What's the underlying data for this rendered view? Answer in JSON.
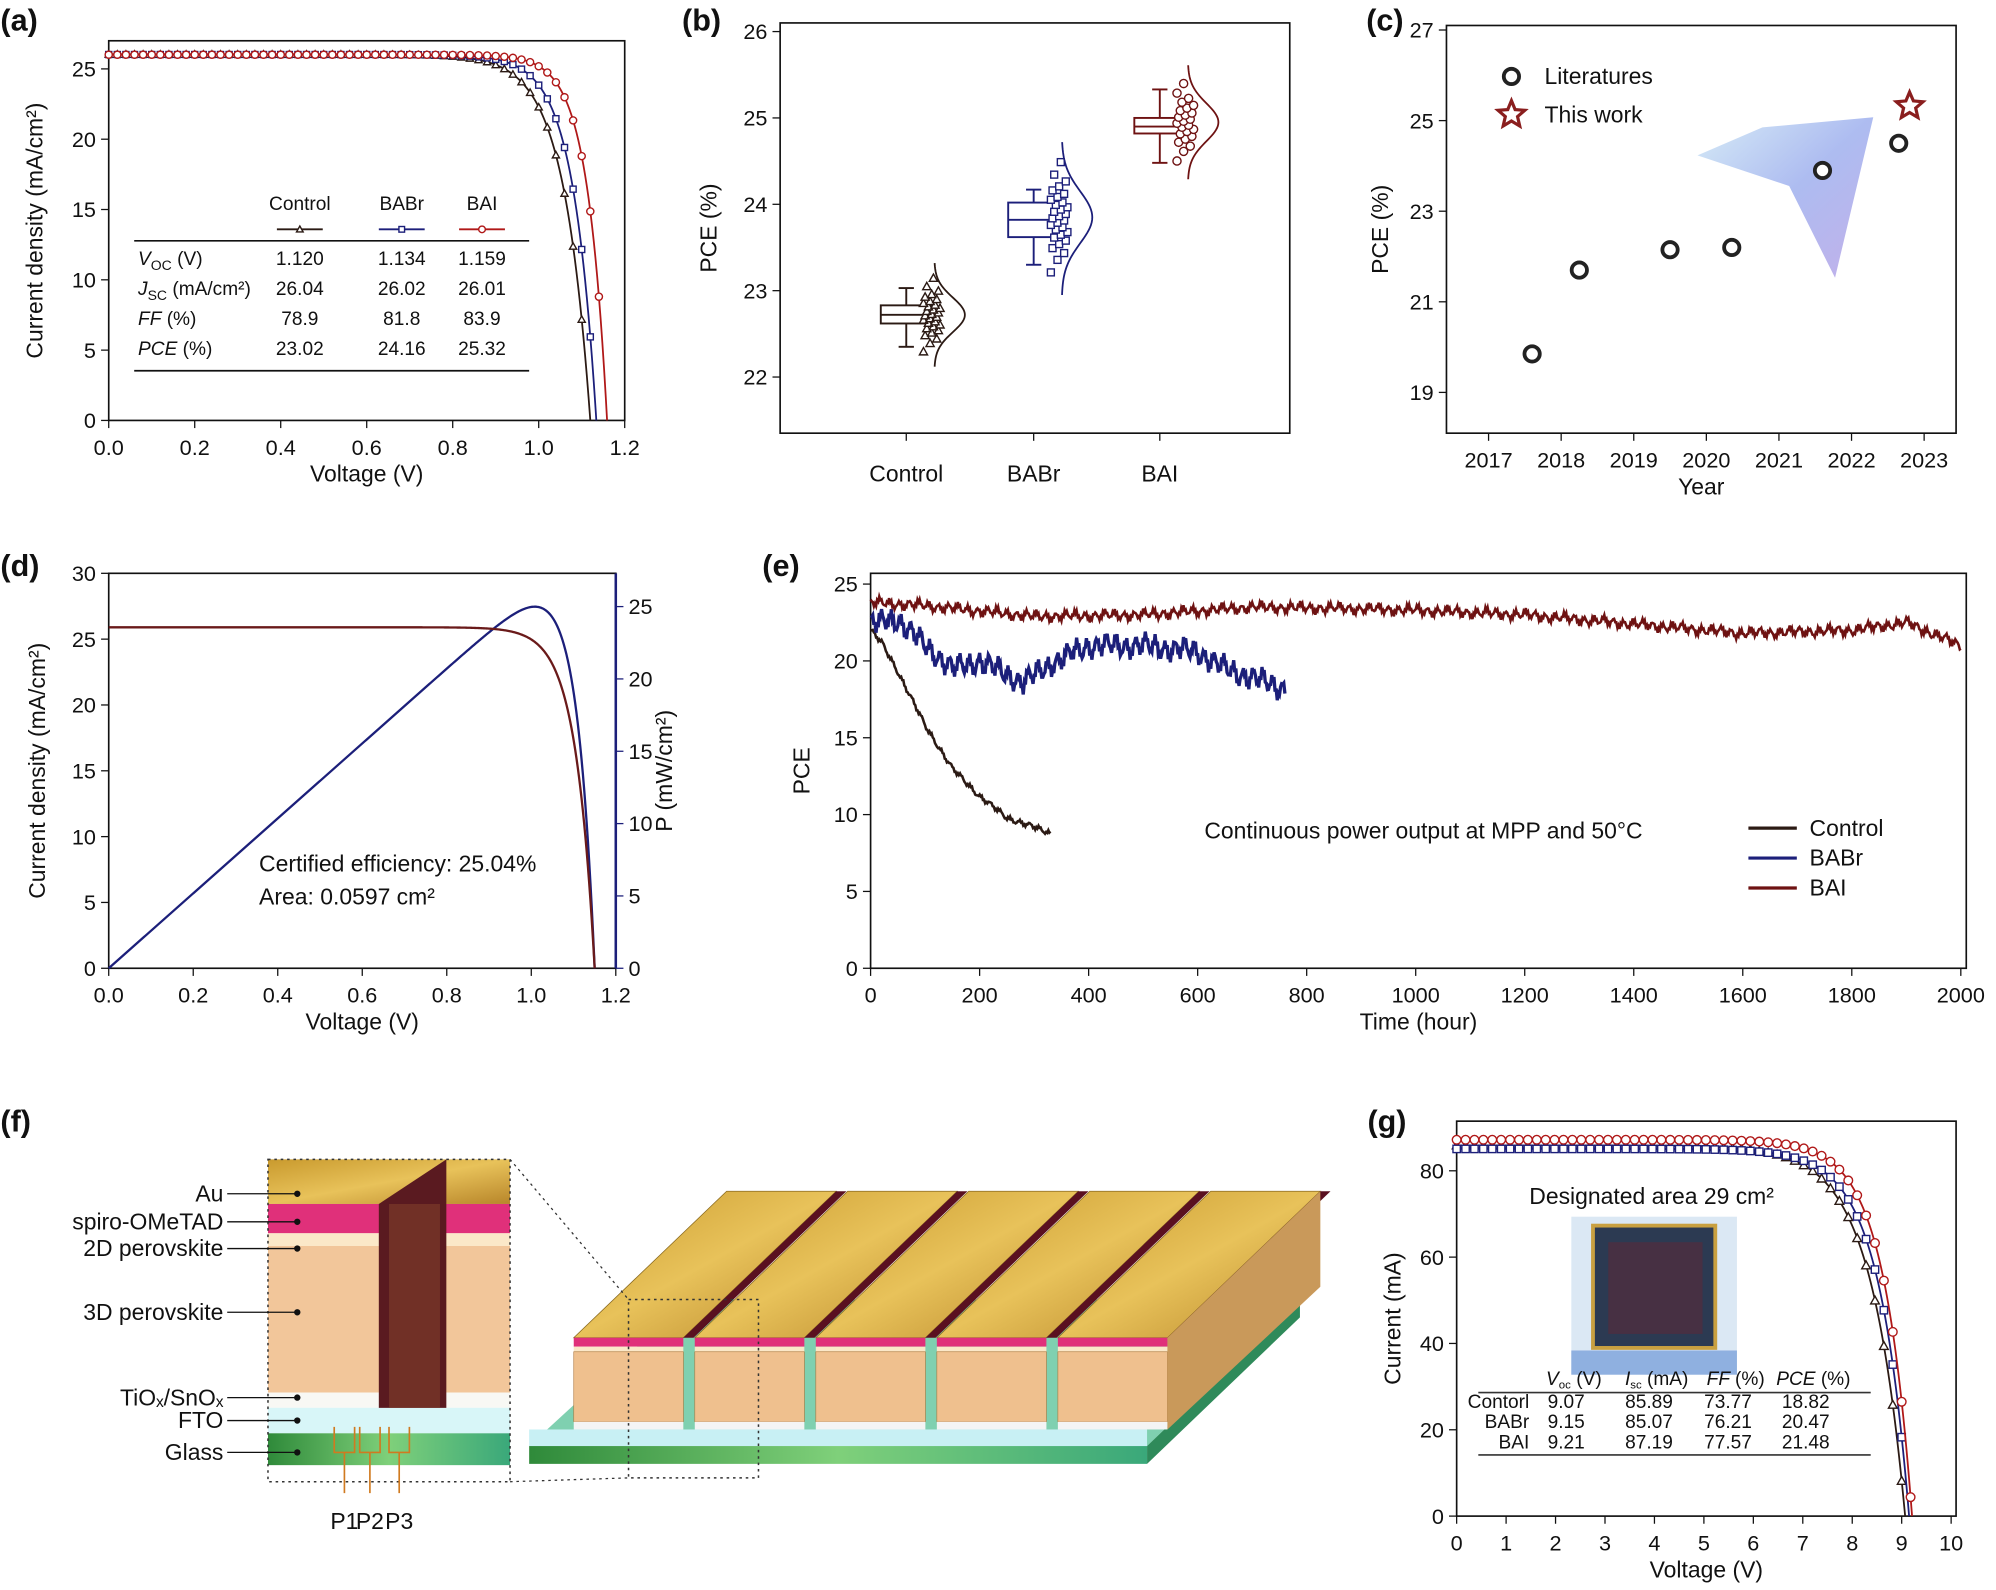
{
  "panel_labels": [
    "(a)",
    "(b)",
    "(c)",
    "(d)",
    "(e)",
    "(f)",
    "(g)"
  ],
  "colors": {
    "control": "#2b1a14",
    "babr": "#1c1f7a",
    "bai": "#b01818",
    "bai_dark": "#6e1212",
    "axis": "#111111"
  },
  "panel_a_table": {
    "headers": [
      "Control",
      "BABr",
      "BAI"
    ],
    "rows": [
      {
        "sym": "V",
        "sub": "OC",
        "unit": " (V)",
        "values": [
          "1.120",
          "1.134",
          "1.159"
        ]
      },
      {
        "sym": "J",
        "sub": "SC",
        "unit": " (mA/cm²)",
        "values": [
          "26.04",
          "26.02",
          "26.01"
        ]
      },
      {
        "sym": "FF",
        "sub": "",
        "unit": " (%)",
        "values": [
          "78.9",
          "81.8",
          "83.9"
        ]
      },
      {
        "sym": "PCE",
        "sub": "",
        "unit": " (%)",
        "values": [
          "23.02",
          "24.16",
          "25.32"
        ]
      }
    ]
  },
  "panel_d_text": {
    "certified": "Certified efficiency: 25.04%",
    "area": "Area: 0.0597 cm²"
  },
  "panel_e_text": {
    "annotation": "Continuous power output at MPP and 50°C"
  },
  "panel_f_labels": {
    "layers": [
      "Au",
      "spiro-OMeTAD",
      "2D perovskite",
      "3D perovskite",
      "TiOₓ/SnOₓ",
      "FTO",
      "Glass"
    ],
    "scribes": [
      "P1",
      "P2",
      "P3"
    ]
  },
  "panel_g_text": {
    "area": "Designated area 29 cm²",
    "table_headers": [
      "V_oc (V)",
      "I_sc (mA)",
      "FF (%)",
      "PCE (%)"
    ],
    "table_rows": [
      {
        "name": "Contorl",
        "values": [
          "9.07",
          "85.89",
          "73.77",
          "18.82"
        ]
      },
      {
        "name": "BABr",
        "values": [
          "9.15",
          "85.07",
          "76.21",
          "20.47"
        ]
      },
      {
        "name": "BAI",
        "values": [
          "9.21",
          "87.19",
          "77.57",
          "21.48"
        ]
      }
    ]
  },
  "chart_data": [
    {
      "id": "a",
      "type": "line",
      "xlabel": "Voltage (V)",
      "ylabel": "Current density (mA/cm²)",
      "xlim": [
        0,
        1.2
      ],
      "ylim": [
        0,
        27
      ],
      "xticks": [
        0,
        0.2,
        0.4,
        0.6,
        0.8,
        1.0,
        1.2
      ],
      "xtick_labels": [
        "0.0",
        "0.2",
        "0.4",
        "0.6",
        "0.8",
        "1.0",
        "1.2"
      ],
      "yticks": [
        0,
        5,
        10,
        15,
        20,
        25
      ],
      "ytick_labels": [
        "0",
        "5",
        "10",
        "15",
        "20",
        "25"
      ],
      "series": [
        {
          "name": "Control",
          "key": "control",
          "marker": "triangle",
          "voc": 1.12,
          "jsc": 26.04,
          "ff": 78.9,
          "pce": 23.02,
          "vt": 0.062
        },
        {
          "name": "BABr",
          "key": "babr",
          "marker": "square",
          "voc": 1.134,
          "jsc": 26.02,
          "ff": 81.8,
          "pce": 24.16,
          "vt": 0.054
        },
        {
          "name": "BAI",
          "key": "bai",
          "marker": "circle",
          "voc": 1.159,
          "jsc": 26.01,
          "ff": 83.9,
          "pce": 25.32,
          "vt": 0.046
        }
      ]
    },
    {
      "id": "b",
      "type": "box",
      "xlabel": "",
      "ylabel": "PCE (%)",
      "ylim": [
        21.35,
        26.1
      ],
      "yticks": [
        22,
        23,
        24,
        25,
        26
      ],
      "ytick_labels": [
        "22",
        "23",
        "24",
        "25",
        "26"
      ],
      "categories": [
        "Control",
        "BABr",
        "BAI"
      ],
      "series": [
        {
          "name": "Control",
          "key": "control",
          "marker": "triangle",
          "min": 22.35,
          "q1": 22.62,
          "median": 22.72,
          "q3": 22.83,
          "max": 23.03,
          "mean": 22.72,
          "sd": 0.2,
          "n": 30
        },
        {
          "name": "BABr",
          "key": "babr",
          "marker": "square",
          "min": 23.3,
          "q1": 23.62,
          "median": 23.82,
          "q3": 24.02,
          "max": 24.17,
          "mean": 23.85,
          "sd": 0.3,
          "n": 30
        },
        {
          "name": "BAI",
          "key": "bai_dark",
          "marker": "circle",
          "min": 24.48,
          "q1": 24.82,
          "median": 24.9,
          "q3": 25.0,
          "max": 25.33,
          "mean": 24.95,
          "sd": 0.22,
          "n": 24
        }
      ]
    },
    {
      "id": "c",
      "type": "scatter",
      "xlabel": "Year",
      "ylabel": "PCE (%)",
      "xlim": [
        2016.42,
        2023.44
      ],
      "ylim": [
        18.1,
        27.1
      ],
      "xticks": [
        2017,
        2018,
        2019,
        2020,
        2021,
        2022,
        2023
      ],
      "xtick_labels": [
        "2017",
        "2018",
        "2019",
        "2020",
        "2021",
        "2022",
        "2023"
      ],
      "yticks": [
        19,
        21,
        23,
        25,
        27
      ],
      "ytick_labels": [
        "19",
        "21",
        "23",
        "25",
        "27"
      ],
      "legend": [
        "Literatures",
        "This work"
      ],
      "legend_position": "top-left",
      "series": [
        {
          "name": "Literatures",
          "marker": "circle",
          "x": [
            2017.6,
            2018.25,
            2019.5,
            2020.35,
            2021.6,
            2022.65
          ],
          "y": [
            19.85,
            21.7,
            22.15,
            22.2,
            23.9,
            24.5
          ]
        },
        {
          "name": "This work",
          "marker": "star",
          "x": [
            2022.8
          ],
          "y": [
            25.32
          ]
        }
      ]
    },
    {
      "id": "d",
      "type": "line",
      "xlabel": "Voltage (V)",
      "ylabel": "Current density (mA/cm²)",
      "y2label": "P (mW/cm²)",
      "xlim": [
        0,
        1.2
      ],
      "ylim": [
        0,
        30
      ],
      "y2lim": [
        0,
        27.3
      ],
      "xticks": [
        0,
        0.2,
        0.4,
        0.6,
        0.8,
        1.0,
        1.2
      ],
      "xtick_labels": [
        "0.0",
        "0.2",
        "0.4",
        "0.6",
        "0.8",
        "1.0",
        "1.2"
      ],
      "yticks": [
        0,
        5,
        10,
        15,
        20,
        25,
        30
      ],
      "ytick_labels": [
        "0",
        "5",
        "10",
        "15",
        "20",
        "25",
        "30"
      ],
      "y2ticks": [
        0,
        5,
        10,
        15,
        20,
        25
      ],
      "y2tick_labels": [
        "0",
        "5",
        "10",
        "15",
        "20",
        "25"
      ],
      "series": [
        {
          "name": "Current density",
          "axis": "left",
          "voc": 1.15,
          "jsc": 25.9,
          "vt": 0.045
        },
        {
          "name": "Power",
          "axis": "right",
          "max_power": 25.04
        }
      ]
    },
    {
      "id": "e",
      "type": "line",
      "xlabel": "Time (hour)",
      "ylabel": "PCE",
      "xlim": [
        0,
        2010
      ],
      "ylim": [
        0,
        25.7
      ],
      "xticks": [
        0,
        200,
        400,
        600,
        800,
        1000,
        1200,
        1400,
        1600,
        1800,
        2000
      ],
      "xtick_labels": [
        "0",
        "200",
        "400",
        "600",
        "800",
        "1000",
        "1200",
        "1400",
        "1600",
        "1800",
        "2000"
      ],
      "yticks": [
        0,
        5,
        10,
        15,
        20,
        25
      ],
      "ytick_labels": [
        "0",
        "5",
        "10",
        "15",
        "20",
        "25"
      ],
      "legend": [
        "Control",
        "BABr",
        "BAI"
      ],
      "legend_position": "bottom-right",
      "series": [
        {
          "name": "Control",
          "key": "control",
          "noise": 0.25,
          "points": [
            [
              0,
              22
            ],
            [
              20,
              21.2
            ],
            [
              50,
              19.3
            ],
            [
              100,
              15.8
            ],
            [
              150,
              13
            ],
            [
              200,
              11.2
            ],
            [
              250,
              9.8
            ],
            [
              330,
              8.8
            ]
          ]
        },
        {
          "name": "BABr",
          "key": "babr",
          "noise": 1.0,
          "points": [
            [
              0,
              22.4
            ],
            [
              50,
              22.7
            ],
            [
              100,
              21
            ],
            [
              150,
              19.5
            ],
            [
              200,
              20
            ],
            [
              280,
              18.6
            ],
            [
              330,
              19.8
            ],
            [
              400,
              21
            ],
            [
              500,
              21
            ],
            [
              600,
              20.6
            ],
            [
              650,
              19.5
            ],
            [
              760,
              18.2
            ]
          ]
        },
        {
          "name": "BAI",
          "key": "bai_dark",
          "noise": 0.45,
          "points": [
            [
              0,
              23.8
            ],
            [
              100,
              23.6
            ],
            [
              300,
              22.9
            ],
            [
              500,
              23.0
            ],
            [
              700,
              23.5
            ],
            [
              900,
              23.4
            ],
            [
              1000,
              23.3
            ],
            [
              1200,
              23.0
            ],
            [
              1400,
              22.4
            ],
            [
              1600,
              21.8
            ],
            [
              1800,
              22.0
            ],
            [
              1900,
              22.5
            ],
            [
              2000,
              21.0
            ]
          ]
        }
      ]
    },
    {
      "id": "g",
      "type": "line",
      "xlabel": "Voltage (V)",
      "ylabel": "Current (mA)",
      "xlim": [
        0,
        10.1
      ],
      "ylim": [
        0,
        91.5
      ],
      "xticks": [
        0,
        1,
        2,
        3,
        4,
        5,
        6,
        7,
        8,
        9,
        10
      ],
      "xtick_labels": [
        "0",
        "1",
        "2",
        "3",
        "4",
        "5",
        "6",
        "7",
        "8",
        "9",
        "10"
      ],
      "yticks": [
        0,
        20,
        40,
        60,
        80
      ],
      "ytick_labels": [
        "0",
        "20",
        "40",
        "60",
        "80"
      ],
      "series": [
        {
          "name": "Contorl",
          "key": "control",
          "marker": "triangle",
          "voc": 9.07,
          "jsc": 85.89,
          "ff": 73.77,
          "pce": 18.82,
          "vt": 0.7
        },
        {
          "name": "BABr",
          "key": "babr",
          "marker": "square",
          "voc": 9.15,
          "jsc": 85.07,
          "ff": 76.21,
          "pce": 20.47,
          "vt": 0.62
        },
        {
          "name": "BAI",
          "key": "bai",
          "marker": "circle",
          "voc": 9.21,
          "jsc": 87.19,
          "ff": 77.57,
          "pce": 21.48,
          "vt": 0.58
        }
      ]
    }
  ]
}
